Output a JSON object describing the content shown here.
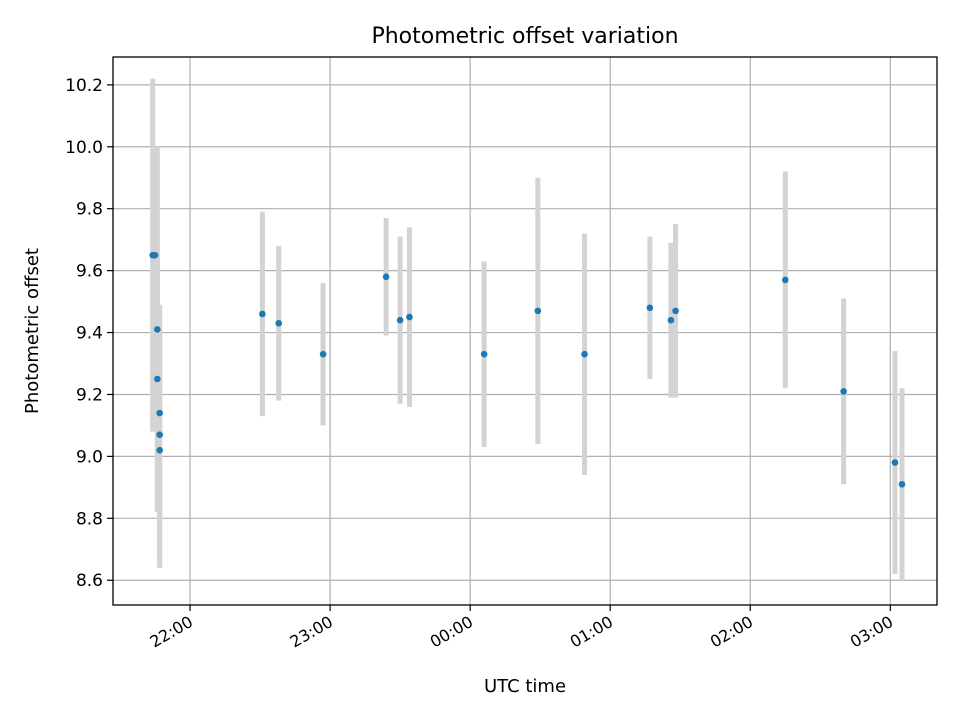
{
  "chart_data": {
    "type": "scatter",
    "title": "Photometric offset variation",
    "xlabel": "UTC time",
    "ylabel": "Photometric offset",
    "xlim": [
      "21:27",
      "03:20"
    ],
    "ylim": [
      8.52,
      10.29
    ],
    "x_ticks": [
      "22:00",
      "23:00",
      "00:00",
      "01:00",
      "02:00",
      "03:00"
    ],
    "y_ticks": [
      "8.6",
      "8.8",
      "9.0",
      "9.2",
      "9.4",
      "9.6",
      "9.8",
      "10.0",
      "10.2"
    ],
    "grid": true,
    "colors": {
      "point": "#1f77b4",
      "errorbar": "#d3d3d3",
      "grid": "#b0b0b0"
    },
    "points": [
      {
        "time": "21:44",
        "y": 9.65,
        "err": 0.57
      },
      {
        "time": "21:45",
        "y": 9.65,
        "err": 0.15
      },
      {
        "time": "21:46",
        "y": 9.41,
        "err": 0.59
      },
      {
        "time": "21:46",
        "y": 9.25,
        "err": 0.43
      },
      {
        "time": "21:47",
        "y": 9.14,
        "err": 0.32
      },
      {
        "time": "21:47",
        "y": 9.07,
        "err": 0.42
      },
      {
        "time": "21:47",
        "y": 9.02,
        "err": 0.38
      },
      {
        "time": "22:31",
        "y": 9.46,
        "err": 0.33
      },
      {
        "time": "22:38",
        "y": 9.43,
        "err": 0.25
      },
      {
        "time": "22:57",
        "y": 9.33,
        "err": 0.23
      },
      {
        "time": "23:24",
        "y": 9.58,
        "err": 0.19
      },
      {
        "time": "23:30",
        "y": 9.44,
        "err": 0.27
      },
      {
        "time": "23:34",
        "y": 9.45,
        "err": 0.29
      },
      {
        "time": "00:06",
        "y": 9.33,
        "err": 0.3
      },
      {
        "time": "00:29",
        "y": 9.47,
        "err": 0.43
      },
      {
        "time": "00:49",
        "y": 9.33,
        "err": 0.39
      },
      {
        "time": "01:17",
        "y": 9.48,
        "err": 0.23
      },
      {
        "time": "01:26",
        "y": 9.44,
        "err": 0.25
      },
      {
        "time": "01:28",
        "y": 9.47,
        "err": 0.28
      },
      {
        "time": "02:15",
        "y": 9.57,
        "err": 0.35
      },
      {
        "time": "02:40",
        "y": 9.21,
        "err": 0.3
      },
      {
        "time": "03:02",
        "y": 8.98,
        "err": 0.36
      },
      {
        "time": "03:05",
        "y": 8.91,
        "err": 0.31
      }
    ]
  }
}
